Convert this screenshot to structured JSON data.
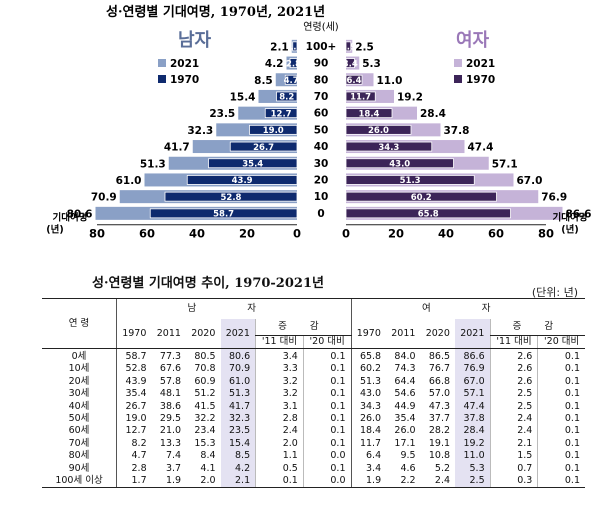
{
  "chart_data": {
    "type": "bar",
    "title": "성·연령별 기대여명, 1970년, 2021년",
    "age_axis_label": "연령(세)",
    "categories": [
      "100+",
      "90",
      "80",
      "70",
      "60",
      "50",
      "40",
      "30",
      "20",
      "10",
      "0"
    ],
    "x_axis_label": "기대여명\n(년)",
    "xlim": [
      0,
      80
    ],
    "xticks": [
      80,
      60,
      40,
      20,
      0
    ],
    "panels": [
      {
        "name": "남자",
        "side": "left",
        "series": [
          {
            "name": "2021",
            "color": "#8aa0c6",
            "values": [
              2.1,
              4.2,
              8.5,
              15.4,
              23.5,
              32.3,
              41.7,
              51.3,
              61.0,
              70.9,
              80.6
            ]
          },
          {
            "name": "1970",
            "color": "#0e2a6e",
            "values": [
              1.7,
              2.8,
              4.7,
              8.2,
              12.7,
              19.0,
              26.7,
              35.4,
              43.9,
              52.8,
              58.7
            ]
          }
        ]
      },
      {
        "name": "여자",
        "side": "right",
        "series": [
          {
            "name": "2021",
            "color": "#c5b3d8",
            "values": [
              2.5,
              5.3,
              11.0,
              19.2,
              28.4,
              37.8,
              47.4,
              57.1,
              67.0,
              76.9,
              86.6
            ]
          },
          {
            "name": "1970",
            "color": "#3c2458",
            "values": [
              1.9,
              3.4,
              6.4,
              11.7,
              18.4,
              26.0,
              34.3,
              43.0,
              51.3,
              60.2,
              65.8
            ]
          }
        ]
      }
    ]
  },
  "table": {
    "title": "성·연령별 기대여명 추이, 1970-2021년",
    "unit": "(단위: 년)",
    "age_header": "연 령",
    "male_header": "남 자",
    "female_header": "여 자",
    "change_header": "증 감",
    "year_headers": [
      "1970",
      "2011",
      "2020",
      "2021"
    ],
    "change_headers": [
      "'11 대비",
      "'20 대비"
    ],
    "rows": [
      {
        "age": "0세",
        "m": [
          "58.7",
          "77.3",
          "80.5",
          "80.6",
          "3.4",
          "0.1"
        ],
        "f": [
          "65.8",
          "84.0",
          "86.5",
          "86.6",
          "2.6",
          "0.1"
        ]
      },
      {
        "age": "10세",
        "m": [
          "52.8",
          "67.6",
          "70.8",
          "70.9",
          "3.3",
          "0.1"
        ],
        "f": [
          "60.2",
          "74.3",
          "76.7",
          "76.9",
          "2.6",
          "0.1"
        ]
      },
      {
        "age": "20세",
        "m": [
          "43.9",
          "57.8",
          "60.9",
          "61.0",
          "3.2",
          "0.1"
        ],
        "f": [
          "51.3",
          "64.4",
          "66.8",
          "67.0",
          "2.6",
          "0.1"
        ]
      },
      {
        "age": "30세",
        "m": [
          "35.4",
          "48.1",
          "51.2",
          "51.3",
          "3.2",
          "0.1"
        ],
        "f": [
          "43.0",
          "54.6",
          "57.0",
          "57.1",
          "2.5",
          "0.1"
        ]
      },
      {
        "age": "40세",
        "m": [
          "26.7",
          "38.6",
          "41.5",
          "41.7",
          "3.1",
          "0.1"
        ],
        "f": [
          "34.3",
          "44.9",
          "47.3",
          "47.4",
          "2.5",
          "0.1"
        ]
      },
      {
        "age": "50세",
        "m": [
          "19.0",
          "29.5",
          "32.2",
          "32.3",
          "2.8",
          "0.1"
        ],
        "f": [
          "26.0",
          "35.4",
          "37.7",
          "37.8",
          "2.4",
          "0.1"
        ]
      },
      {
        "age": "60세",
        "m": [
          "12.7",
          "21.0",
          "23.4",
          "23.5",
          "2.4",
          "0.1"
        ],
        "f": [
          "18.4",
          "26.0",
          "28.2",
          "28.4",
          "2.4",
          "0.1"
        ]
      },
      {
        "age": "70세",
        "m": [
          "8.2",
          "13.3",
          "15.3",
          "15.4",
          "2.0",
          "0.1"
        ],
        "f": [
          "11.7",
          "17.1",
          "19.1",
          "19.2",
          "2.1",
          "0.1"
        ]
      },
      {
        "age": "80세",
        "m": [
          "4.7",
          "7.4",
          "8.4",
          "8.5",
          "1.1",
          "0.0"
        ],
        "f": [
          "6.4",
          "9.5",
          "10.8",
          "11.0",
          "1.5",
          "0.1"
        ]
      },
      {
        "age": "90세",
        "m": [
          "2.8",
          "3.7",
          "4.1",
          "4.2",
          "0.5",
          "0.1"
        ],
        "f": [
          "3.4",
          "4.6",
          "5.2",
          "5.3",
          "0.7",
          "0.1"
        ]
      },
      {
        "age": "100세 이상",
        "m": [
          "1.7",
          "1.9",
          "2.0",
          "2.1",
          "0.1",
          "0.0"
        ],
        "f": [
          "1.9",
          "2.2",
          "2.4",
          "2.5",
          "0.3",
          "0.1"
        ]
      }
    ]
  }
}
